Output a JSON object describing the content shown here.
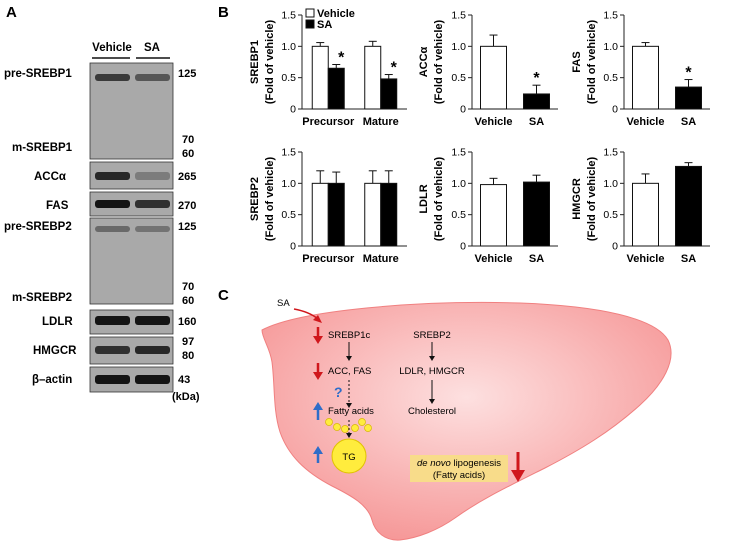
{
  "panels": {
    "a": "A",
    "b": "B",
    "c": "C"
  },
  "blot": {
    "lanes": [
      "Vehicle",
      "SA"
    ],
    "units": "(kDa)",
    "labels": {
      "pre_srebp1": "pre-SREBP1",
      "m_srebp1": "m-SREBP1",
      "acc": "ACCα",
      "fas": "FAS",
      "pre_srebp2": "pre-SREBP2",
      "m_srebp2": "m-SREBP2",
      "ldlr": "LDLR",
      "hmgcr": "HMGCR",
      "actin": "β–actin"
    },
    "markers": {
      "m125a": "125",
      "m70a": "70",
      "m60a": "60",
      "m265": "265",
      "m270": "270",
      "m125b": "125",
      "m70b": "70",
      "m60b": "60",
      "m160": "160",
      "m97": "97",
      "m80": "80",
      "m43": "43"
    }
  },
  "chart_data": [
    {
      "type": "bar",
      "ylabel_top": "SREBP1",
      "ylabel_bottom": "(Fold of vehicle)",
      "categories": [
        "Precursor",
        "Mature"
      ],
      "legend": [
        "Vehicle",
        "SA"
      ],
      "legend_position": "top",
      "series": [
        {
          "name": "Vehicle",
          "values": [
            1.0,
            1.0
          ],
          "errors": [
            0.06,
            0.08
          ]
        },
        {
          "name": "SA",
          "values": [
            0.65,
            0.48
          ],
          "errors": [
            0.06,
            0.07
          ]
        }
      ],
      "significance": [
        [
          "",
          "*"
        ],
        [
          "",
          "*"
        ]
      ],
      "ylim": [
        0,
        1.5
      ],
      "yticks": [
        "0",
        "0.5",
        "1.0",
        "1.5"
      ]
    },
    {
      "type": "bar",
      "ylabel_top": "ACCα",
      "ylabel_bottom": "(Fold of vehicle)",
      "categories": [
        "Vehicle",
        "SA"
      ],
      "values": [
        1.0,
        0.24
      ],
      "errors": [
        0.18,
        0.14
      ],
      "significance": [
        "",
        "*"
      ],
      "ylim": [
        0,
        1.5
      ],
      "yticks": [
        "0",
        "0.5",
        "1.0",
        "1.5"
      ]
    },
    {
      "type": "bar",
      "ylabel_top": "FAS",
      "ylabel_bottom": "(Fold of vehicle)",
      "categories": [
        "Vehicle",
        "SA"
      ],
      "values": [
        1.0,
        0.35
      ],
      "errors": [
        0.06,
        0.12
      ],
      "significance": [
        "",
        "*"
      ],
      "ylim": [
        0,
        1.5
      ],
      "yticks": [
        "0",
        "0.5",
        "1.0",
        "1.5"
      ]
    },
    {
      "type": "bar",
      "ylabel_top": "SREBP2",
      "ylabel_bottom": "(Fold of vehicle)",
      "categories": [
        "Precursor",
        "Mature"
      ],
      "series": [
        {
          "name": "Vehicle",
          "values": [
            1.0,
            1.0
          ],
          "errors": [
            0.2,
            0.2
          ]
        },
        {
          "name": "SA",
          "values": [
            1.0,
            1.0
          ],
          "errors": [
            0.18,
            0.2
          ]
        }
      ],
      "ylim": [
        0,
        1.5
      ],
      "yticks": [
        "0",
        "0.5",
        "1.0",
        "1.5"
      ]
    },
    {
      "type": "bar",
      "ylabel_top": "LDLR",
      "ylabel_bottom": "(Fold of vehicle)",
      "categories": [
        "Vehicle",
        "SA"
      ],
      "values": [
        0.98,
        1.02
      ],
      "errors": [
        0.1,
        0.11
      ],
      "ylim": [
        0,
        1.5
      ],
      "yticks": [
        "0",
        "0.5",
        "1.0",
        "1.5"
      ]
    },
    {
      "type": "bar",
      "ylabel_top": "HMGCR",
      "ylabel_bottom": "(Fold of vehicle)",
      "categories": [
        "Vehicle",
        "SA"
      ],
      "values": [
        1.0,
        1.27
      ],
      "errors": [
        0.15,
        0.06
      ],
      "ylim": [
        0,
        1.5
      ],
      "yticks": [
        "0",
        "0.5",
        "1.0",
        "1.5"
      ]
    }
  ],
  "pathway": {
    "sa": "SA",
    "srebp1c": "SREBP1c",
    "srebp2": "SREBP2",
    "acc_fas": "ACC, FAS",
    "ldlr_hmgcr": "LDLR, HMGCR",
    "fatty_acids": "Fatty acids",
    "cholesterol": "Cholesterol",
    "tg": "TG",
    "question": "?",
    "dnl_italic": "de novo",
    "dnl_rest": " lipogenesis",
    "dnl_sub": "(Fatty acids)",
    "colors": {
      "liver": "#f7a6a6",
      "down_arrow": "#d0171c",
      "up_arrow": "#2f6dc9",
      "droplet": "#ffec3d",
      "box": "#f8dc8a"
    }
  }
}
